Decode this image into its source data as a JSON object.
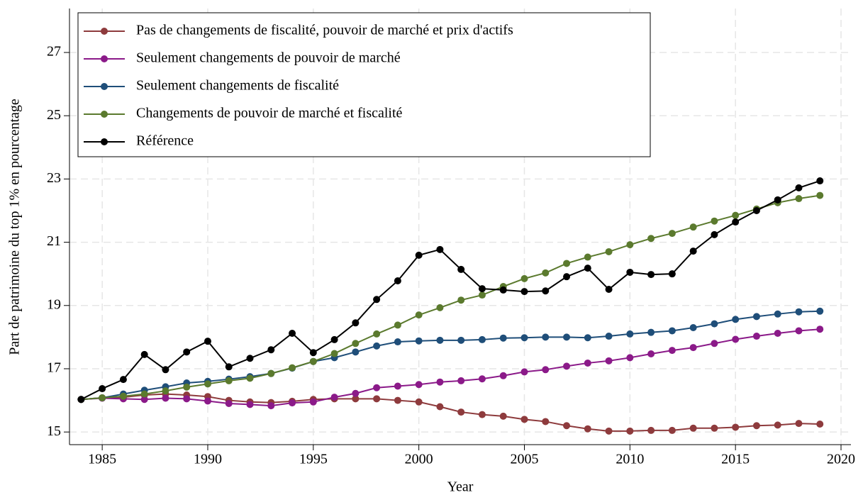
{
  "chart_data": {
    "type": "line",
    "x_label": "Year",
    "y_label": "Part de patrimoine du top 1% en pourcentage",
    "x": [
      1984,
      1985,
      1986,
      1987,
      1988,
      1989,
      1990,
      1991,
      1992,
      1993,
      1994,
      1995,
      1996,
      1997,
      1998,
      1999,
      2000,
      2001,
      2002,
      2003,
      2004,
      2005,
      2006,
      2007,
      2008,
      2009,
      2010,
      2011,
      2012,
      2013,
      2014,
      2015,
      2016,
      2017,
      2018,
      2019
    ],
    "series": [
      {
        "name": "Pas de changements de fiscalité, pouvoir de marché et prix d'actifs",
        "color": "#8e3b3d",
        "values": [
          16.03,
          16.08,
          16.1,
          16.17,
          16.2,
          16.17,
          16.12,
          16.0,
          15.95,
          15.93,
          15.97,
          16.03,
          16.05,
          16.05,
          16.05,
          16.0,
          15.95,
          15.8,
          15.63,
          15.55,
          15.5,
          15.4,
          15.33,
          15.2,
          15.1,
          15.03,
          15.03,
          15.05,
          15.05,
          15.12,
          15.12,
          15.15,
          15.2,
          15.22,
          15.27,
          15.25
        ]
      },
      {
        "name": "Seulement changements de pouvoir de marché",
        "color": "#8b1a89",
        "values": [
          16.03,
          16.07,
          16.05,
          16.03,
          16.07,
          16.05,
          15.98,
          15.9,
          15.87,
          15.83,
          15.92,
          15.95,
          16.1,
          16.22,
          16.4,
          16.45,
          16.5,
          16.58,
          16.62,
          16.68,
          16.78,
          16.9,
          16.97,
          17.08,
          17.18,
          17.25,
          17.35,
          17.47,
          17.58,
          17.67,
          17.8,
          17.93,
          18.03,
          18.12,
          18.2,
          18.25
        ]
      },
      {
        "name": "Seulement changements de fiscalité",
        "color": "#1f4e79",
        "values": [
          16.03,
          16.08,
          16.2,
          16.32,
          16.43,
          16.55,
          16.6,
          16.67,
          16.75,
          16.85,
          17.02,
          17.23,
          17.35,
          17.53,
          17.72,
          17.85,
          17.88,
          17.9,
          17.9,
          17.92,
          17.97,
          17.98,
          18.0,
          18.0,
          17.98,
          18.03,
          18.1,
          18.15,
          18.2,
          18.3,
          18.42,
          18.56,
          18.65,
          18.73,
          18.8,
          18.82
        ]
      },
      {
        "name": "Changements de pouvoir de marché et fiscalité",
        "color": "#5b7a2e",
        "values": [
          16.03,
          16.08,
          16.13,
          16.2,
          16.3,
          16.42,
          16.52,
          16.62,
          16.7,
          16.85,
          17.03,
          17.23,
          17.48,
          17.8,
          18.1,
          18.38,
          18.7,
          18.93,
          19.17,
          19.33,
          19.6,
          19.85,
          20.03,
          20.33,
          20.53,
          20.7,
          20.92,
          21.12,
          21.28,
          21.48,
          21.67,
          21.85,
          22.05,
          22.25,
          22.38,
          22.48
        ]
      },
      {
        "name": "Référence",
        "color": "#000000",
        "values": [
          16.03,
          16.37,
          16.66,
          17.45,
          16.97,
          17.53,
          17.87,
          17.06,
          17.33,
          17.6,
          18.12,
          17.51,
          17.92,
          18.45,
          19.19,
          19.78,
          20.59,
          20.77,
          20.14,
          19.53,
          19.49,
          19.44,
          19.46,
          19.91,
          20.18,
          19.51,
          20.05,
          19.98,
          20.0,
          20.72,
          21.24,
          21.64,
          22.0,
          22.34,
          22.72,
          22.94
        ]
      }
    ],
    "xlim": [
      1983.45,
      2020.47
    ],
    "xticks": [
      1985,
      1990,
      1995,
      2000,
      2005,
      2010,
      2015,
      2020
    ],
    "ylim": [
      14.6,
      28.39
    ],
    "yticks": [
      15,
      17,
      19,
      21,
      23,
      25,
      27
    ],
    "grid": true,
    "legend": "top-left"
  }
}
